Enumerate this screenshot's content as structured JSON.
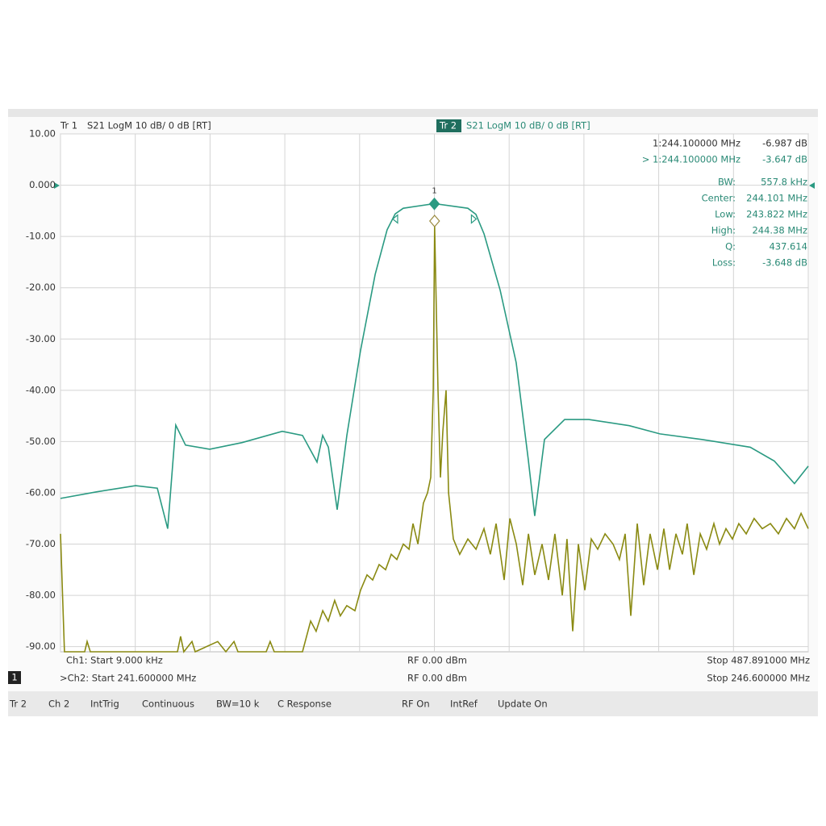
{
  "header": {
    "trace1": "Tr 1",
    "trace1_format": "S21 LogM 10 dB/ 0 dB [RT]",
    "trace2": "Tr 2",
    "trace2_format": "S21 LogM 10 dB/ 0 dB [RT]"
  },
  "marker_readout": [
    {
      "label": "1:244.100000 MHz",
      "value": "-6.987 dB"
    },
    {
      "label": "> 1:244.100000 MHz",
      "value": "-3.647 dB"
    },
    {
      "label": "BW:",
      "value": "557.8 kHz"
    },
    {
      "label": "Center:",
      "value": "244.101 MHz"
    },
    {
      "label": "Low:",
      "value": "243.822 MHz"
    },
    {
      "label": "High:",
      "value": "244.38 MHz"
    },
    {
      "label": "Q:",
      "value": "437.614"
    },
    {
      "label": "Loss:",
      "value": "-3.648 dB"
    }
  ],
  "footer": {
    "ch1_start": "Ch1: Start 9.000 kHz",
    "ch1_power": "RF 0.00 dBm",
    "ch1_stop": "Stop 487.891000 MHz",
    "window": "1",
    "ch2_start": ">Ch2: Start 241.600000 MHz",
    "ch2_power": "RF 0.00 dBm",
    "ch2_stop": "Stop 246.600000 MHz"
  },
  "status_bar": [
    "Tr 2",
    "Ch 2",
    "IntTrig",
    "Continuous",
    "BW=10 k",
    "C Response",
    "RF On",
    "IntRef",
    "Update On"
  ],
  "chart_data": {
    "type": "line",
    "grid": true,
    "ylim": [
      -91,
      10
    ],
    "yticks": [
      {
        "value": 10,
        "label": "10.00"
      },
      {
        "value": 0,
        "label": "0.000"
      },
      {
        "value": -10,
        "label": "-10.00"
      },
      {
        "value": -20,
        "label": "-20.00"
      },
      {
        "value": -30,
        "label": "-30.00"
      },
      {
        "value": -40,
        "label": "-40.00"
      },
      {
        "value": -50,
        "label": "-50.00"
      },
      {
        "value": -60,
        "label": "-60.00"
      },
      {
        "value": -70,
        "label": "-70.00"
      },
      {
        "value": -80,
        "label": "-80.00"
      },
      {
        "value": -90,
        "label": "-90.00"
      }
    ],
    "xlim": [
      241.6,
      246.6
    ],
    "xticks": [
      241.6,
      242.1,
      242.6,
      243.1,
      243.6,
      244.1,
      244.6,
      245.1,
      245.6,
      246.1,
      246.6
    ],
    "series": [
      {
        "name": "Tr 1",
        "color": "#8a8a12",
        "xlim": [
          0.009,
          487.891
        ],
        "x": [
          0.009,
          2.6,
          15.8,
          17.4,
          19.5,
          76.3,
          78.4,
          80.5,
          85.8,
          87.9,
          102.6,
          107.9,
          113.2,
          115.8,
          134.2,
          136.8,
          139.5,
          157.9,
          163.2,
          166.8,
          171.1,
          174.7,
          178.9,
          182.6,
          186.8,
          192.1,
          195.8,
          200.0,
          203.7,
          207.9,
          212.1,
          215.8,
          219.5,
          223.7,
          227.4,
          230.0,
          233.2,
          236.8,
          239.5,
          241.6,
          243.2,
          244.1,
          246.3,
          247.9,
          249.5,
          251.6,
          253.2,
          256.3,
          260.5,
          265.8,
          271.1,
          276.3,
          280.5,
          284.2,
          289.5,
          293.2,
          297.4,
          301.6,
          305.3,
          309.5,
          314.2,
          318.4,
          322.6,
          327.4,
          330.5,
          334.2,
          337.9,
          342.1,
          346.3,
          350.5,
          355.3,
          360.5,
          364.7,
          368.4,
          372.1,
          376.3,
          380.5,
          384.7,
          389.5,
          393.7,
          397.4,
          401.6,
          405.8,
          408.9,
          413.2,
          417.4,
          421.6,
          426.3,
          430.0,
          434.2,
          438.4,
          442.6,
          447.4,
          452.6,
          457.9,
          463.2,
          468.4,
          473.7,
          478.9,
          483.2,
          487.891
        ],
        "values": [
          -68,
          -91,
          -91,
          -89,
          -91,
          -91,
          -88,
          -91,
          -89,
          -91,
          -89,
          -91,
          -89,
          -91,
          -91,
          -89,
          -91,
          -91,
          -85,
          -87,
          -83,
          -85,
          -81,
          -84,
          -82,
          -83,
          -79,
          -76,
          -77,
          -74,
          -75,
          -72,
          -73,
          -70,
          -71,
          -66,
          -70,
          -62,
          -60,
          -57,
          -40,
          -8,
          -40,
          -57,
          -48,
          -40,
          -60,
          -69,
          -72,
          -69,
          -71,
          -67,
          -72,
          -66,
          -77,
          -65,
          -70,
          -78,
          -68,
          -76,
          -70,
          -77,
          -68,
          -80,
          -69,
          -87,
          -70,
          -79,
          -69,
          -71,
          -68,
          -70,
          -73,
          -68,
          -84,
          -66,
          -78,
          -68,
          -75,
          -67,
          -75,
          -68,
          -72,
          -66,
          -76,
          -68,
          -71,
          -66,
          -70,
          -67,
          -69,
          -66,
          -68,
          -65,
          -67,
          -66,
          -68,
          -65,
          -67,
          -64,
          -67
        ],
        "markers": [
          {
            "x": 244.1,
            "y": -6.987
          }
        ]
      },
      {
        "name": "Tr 2",
        "color": "#2a9a82",
        "x": [
          241.6,
          241.843,
          242.102,
          242.247,
          242.317,
          242.371,
          242.436,
          242.598,
          242.814,
          243.083,
          243.218,
          243.315,
          243.353,
          243.391,
          243.45,
          243.515,
          243.606,
          243.704,
          243.784,
          243.838,
          243.892,
          244.1,
          244.324,
          244.378,
          244.432,
          244.54,
          244.647,
          244.728,
          244.771,
          244.836,
          244.971,
          245.133,
          245.403,
          245.608,
          245.888,
          246.212,
          246.373,
          246.508,
          246.6
        ],
        "values": [
          -61.1,
          -59.8,
          -58.6,
          -59.1,
          -67,
          -46.8,
          -50.7,
          -51.5,
          -50.2,
          -48,
          -48.8,
          -54,
          -48.8,
          -51.1,
          -63.3,
          -48.8,
          -32.3,
          -17.4,
          -8.7,
          -5.6,
          -4.5,
          -3.6,
          -4.5,
          -5.7,
          -9.5,
          -20.5,
          -34.6,
          -53.5,
          -64.5,
          -49.6,
          -45.7,
          -45.7,
          -46.9,
          -48.5,
          -49.6,
          -51.1,
          -53.8,
          -58.2,
          -54.8
        ],
        "markers": [
          {
            "label": "1",
            "x": 244.1,
            "y": -3.647
          }
        ],
        "bw_markers": [
          {
            "x": 243.822,
            "y": -6.6
          },
          {
            "x": 244.38,
            "y": -6.6
          }
        ]
      }
    ]
  }
}
